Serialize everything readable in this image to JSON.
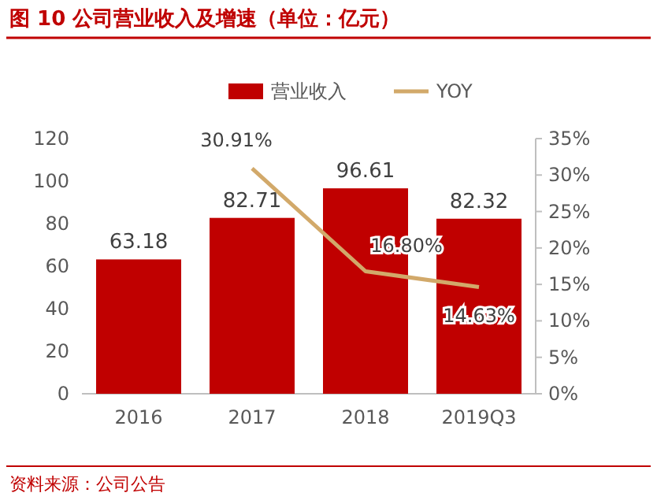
{
  "chart_data": {
    "type": "bar",
    "title": "图 10  公司营业收入及增速（单位：亿元）",
    "categories": [
      "2016",
      "2017",
      "2018",
      "2019Q3"
    ],
    "series": [
      {
        "name": "营业收入",
        "color": "#c00000",
        "values": [
          63.18,
          82.71,
          96.61,
          82.32
        ],
        "value_labels": [
          "63.18",
          "82.71",
          "96.61",
          "82.32"
        ]
      },
      {
        "name": "YOY",
        "type": "line",
        "axis": "y2",
        "color": "#d2a96a",
        "values": [
          null,
          30.91,
          16.8,
          14.63
        ],
        "value_labels": [
          null,
          "30.91%",
          "16.80%",
          "14.63%"
        ]
      }
    ],
    "ylim": [
      0,
      120
    ],
    "yticks": [
      0,
      20,
      40,
      60,
      80,
      100,
      120
    ],
    "y2lim": [
      0,
      35
    ],
    "y2ticks": [
      {
        "value": 0,
        "label": "0%"
      },
      {
        "value": 5,
        "label": "5%"
      },
      {
        "value": 10,
        "label": "10%"
      },
      {
        "value": 15,
        "label": "15%"
      },
      {
        "value": 20,
        "label": "20%"
      },
      {
        "value": 25,
        "label": "25%"
      },
      {
        "value": 30,
        "label": "30%"
      },
      {
        "value": 35,
        "label": "35%"
      }
    ],
    "legend": "top",
    "annotations": [
      "资料来源：公司公告"
    ]
  }
}
